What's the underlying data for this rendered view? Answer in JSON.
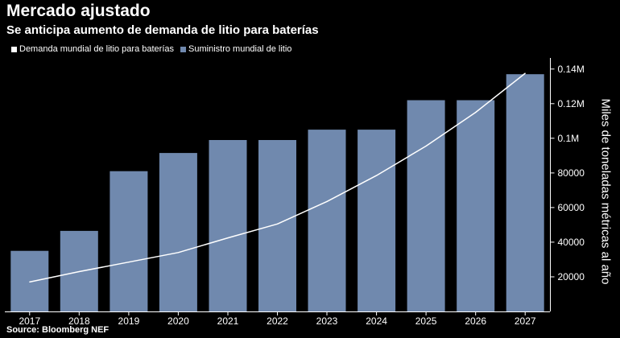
{
  "chart_data": {
    "type": "bar",
    "title": "Mercado ajustado",
    "subtitle": "Se anticipa aumento de demanda de litio para baterías",
    "source": "Source: Bloomberg NEF",
    "xlabel": "",
    "ylabel": "Miles de toneladas métricas al año",
    "categories": [
      "2017",
      "2018",
      "2019",
      "2020",
      "2021",
      "2022",
      "2023",
      "2024",
      "2025",
      "2026",
      "2027"
    ],
    "series": [
      {
        "name": "Suministro mundial de litio",
        "kind": "bar",
        "color": "#7089ae",
        "values": [
          35000,
          46500,
          81000,
          91500,
          99000,
          99000,
          105000,
          105000,
          122000,
          122000,
          137000
        ]
      },
      {
        "name": "Demanda mundial de litio para baterías",
        "kind": "line",
        "color": "#ffffff",
        "values": [
          17000,
          23000,
          28500,
          34000,
          42500,
          50500,
          63500,
          78500,
          95500,
          115000,
          137500
        ]
      }
    ],
    "ylim": [
      0,
      145000
    ],
    "yticks": [
      20000,
      40000,
      60000,
      80000,
      100000,
      120000,
      140000
    ],
    "ytick_labels": [
      "20000",
      "40000",
      "60000",
      "80000",
      "0.1M",
      "0.12M",
      "0.14M"
    ],
    "grid": false,
    "legend_position": "top-left",
    "axis_color": "#ffffff"
  }
}
